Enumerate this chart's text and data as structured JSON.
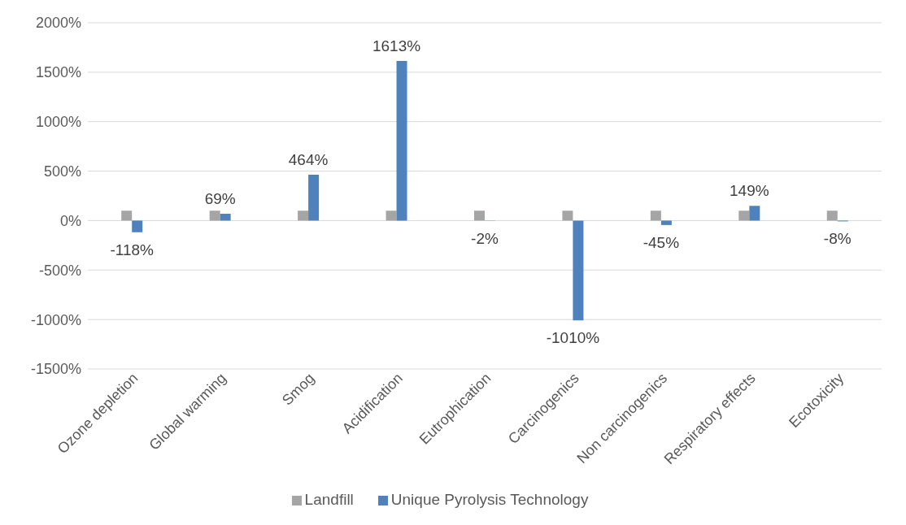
{
  "chart_data": {
    "type": "bar",
    "categories": [
      "Ozone depletion",
      "Global warming",
      "Smog",
      "Acidification",
      "Eutrophication",
      "Carcinogenics",
      "Non carcinogenics",
      "Respiratory effects",
      "Ecotoxicity"
    ],
    "series": [
      {
        "name": "Landfill",
        "color": "#a5a5a5",
        "values": [
          100,
          100,
          100,
          100,
          100,
          100,
          100,
          100,
          100
        ]
      },
      {
        "name": "Unique Pyrolysis Technology",
        "color": "#4f81bd",
        "values": [
          -118,
          69,
          464,
          1613,
          -2,
          -1010,
          -45,
          149,
          -8
        ],
        "value_labels": [
          "-118%",
          "69%",
          "464%",
          "1613%",
          "-2%",
          "-1010%",
          "-45%",
          "149%",
          "-8%"
        ]
      }
    ],
    "ylim": [
      -1500,
      2000
    ],
    "yticks": [
      {
        "value": -1500,
        "label": "-1500%"
      },
      {
        "value": -1000,
        "label": "-1000%"
      },
      {
        "value": -500,
        "label": "-500%"
      },
      {
        "value": 0,
        "label": "0%"
      },
      {
        "value": 500,
        "label": "500%"
      },
      {
        "value": 1000,
        "label": "1000%"
      },
      {
        "value": 1500,
        "label": "1500%"
      },
      {
        "value": 2000,
        "label": "2000%"
      }
    ],
    "grid": "y",
    "legend": "bottom"
  }
}
